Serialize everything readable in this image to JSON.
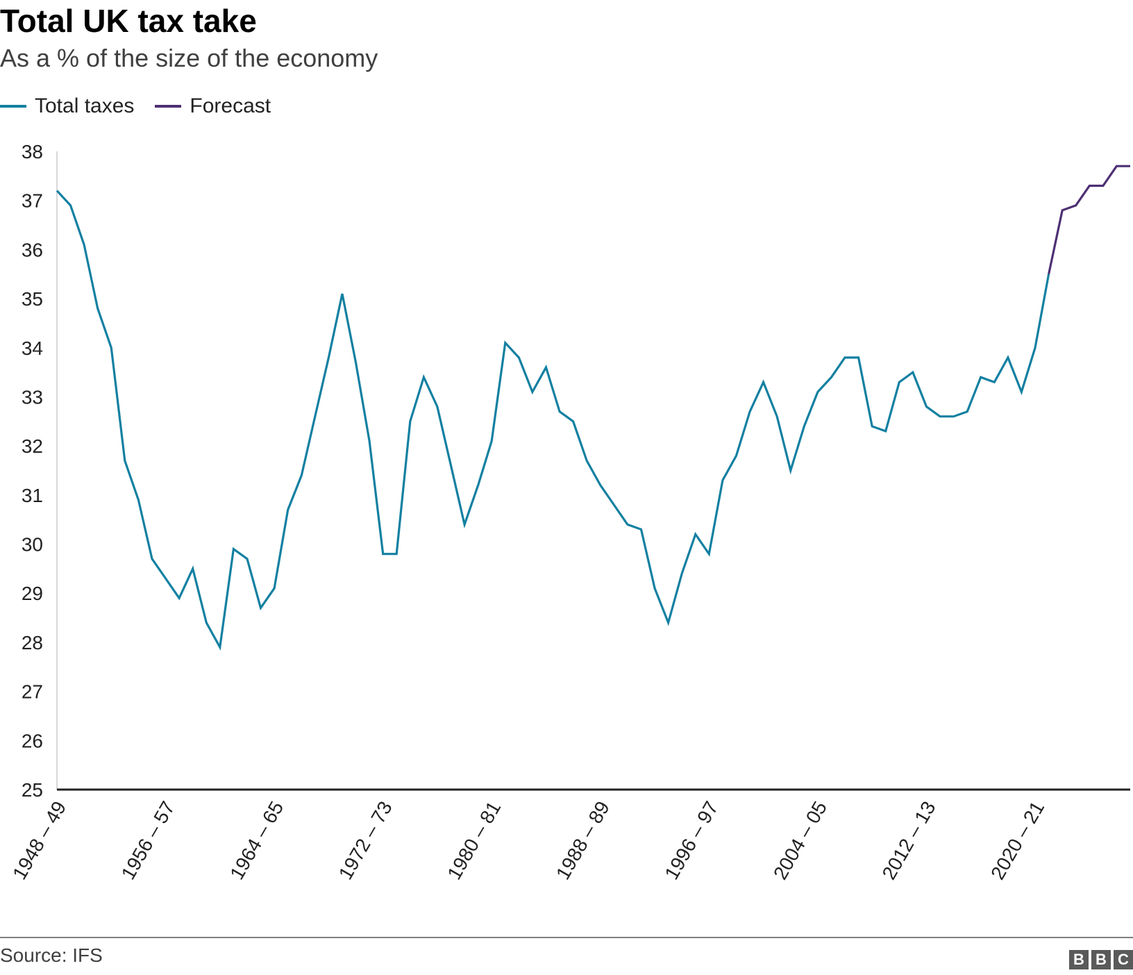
{
  "title": "Total UK tax take",
  "subtitle": "As a % of the size of the economy",
  "legend": [
    {
      "label": "Total taxes",
      "color": "#1380a1"
    },
    {
      "label": "Forecast",
      "color": "#4e2f73"
    }
  ],
  "source": "Source: IFS",
  "logo": [
    "B",
    "B",
    "C"
  ],
  "chart_data": {
    "type": "line",
    "title": "Total UK tax take",
    "subtitle": "As a % of the size of the economy",
    "ylim": [
      25,
      38
    ],
    "yticks": [
      25,
      26,
      27,
      28,
      29,
      30,
      31,
      32,
      33,
      34,
      35,
      36,
      37,
      38
    ],
    "xtick_labels": [
      "1948 – 49",
      "1956 – 57",
      "1964 – 65",
      "1972 – 73",
      "1980 – 81",
      "1988 – 89",
      "1996 – 97",
      "2004 – 05",
      "2012 – 13",
      "2020 – 21"
    ],
    "x_start_label": "1948 – 49",
    "grid": false,
    "legend_position": "top-left",
    "series": [
      {
        "name": "Total taxes",
        "color": "#1380a1",
        "x_start": 1948,
        "values": [
          37.2,
          36.9,
          36.1,
          34.8,
          34.0,
          31.7,
          30.9,
          29.7,
          29.3,
          28.9,
          29.5,
          28.4,
          27.9,
          29.9,
          29.7,
          28.7,
          29.1,
          30.7,
          31.4,
          32.6,
          33.8,
          35.1,
          33.7,
          32.1,
          29.8,
          29.8,
          32.5,
          33.4,
          32.8,
          31.6,
          30.4,
          31.2,
          32.1,
          34.1,
          33.8,
          33.1,
          33.6,
          32.7,
          32.5,
          31.7,
          31.2,
          30.8,
          30.4,
          30.3,
          29.1,
          28.4,
          29.4,
          30.2,
          29.8,
          31.3,
          31.8,
          32.7,
          33.3,
          32.6,
          31.5,
          32.4,
          33.1,
          33.4,
          33.8,
          33.8,
          32.4,
          32.3,
          33.3,
          33.5,
          32.8,
          32.6,
          32.6,
          32.7,
          33.4,
          33.3,
          33.8,
          33.1,
          34.0,
          35.5
        ]
      },
      {
        "name": "Forecast",
        "color": "#4e2f73",
        "x_start": 2021,
        "values": [
          35.5,
          36.8,
          36.9,
          37.3,
          37.3,
          37.7,
          37.7
        ]
      }
    ]
  }
}
